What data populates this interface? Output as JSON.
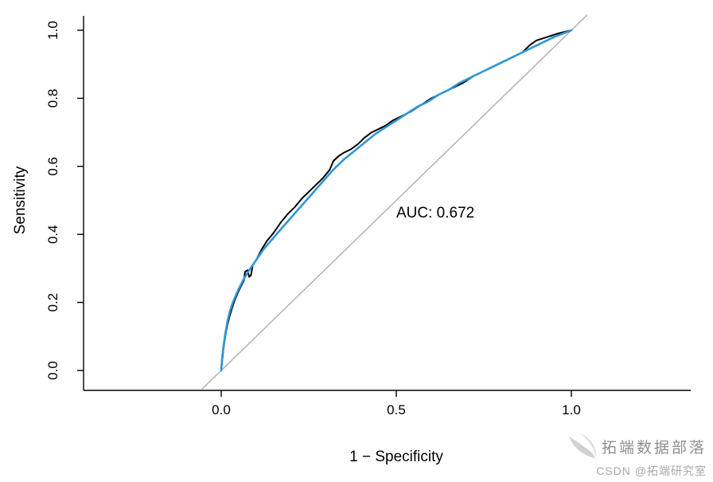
{
  "chart_data": {
    "type": "line",
    "subtype": "roc-curve",
    "title": "",
    "xlabel": "1 − Specificity",
    "ylabel": "Sensitivity",
    "xlim": [
      0,
      1
    ],
    "ylim": [
      0,
      1
    ],
    "grid": false,
    "legend": "none",
    "x_axis": {
      "tick_values": [
        0,
        0.5,
        1
      ],
      "tick_labels": [
        "0.0",
        "0.5",
        "1.0"
      ]
    },
    "y_axis": {
      "tick_values": [
        0,
        0.2,
        0.4,
        0.6,
        0.8,
        1
      ],
      "tick_labels": [
        "0.0",
        "0.2",
        "0.4",
        "0.6",
        "0.8",
        "1.0"
      ]
    },
    "annotation": {
      "text": "AUC: 0.672",
      "x": 0.5,
      "y": 0.45,
      "color": "#000000"
    },
    "reference_line": {
      "name": "chance-diagonal",
      "x": [
        0,
        1
      ],
      "y": [
        0,
        1
      ],
      "color": "#b3b3b3",
      "width": 1.5
    },
    "series": [
      {
        "name": "empirical-roc",
        "color": "#000000",
        "width": 2,
        "points": [
          [
            0.0,
            0.0
          ],
          [
            0.003,
            0.03
          ],
          [
            0.006,
            0.06
          ],
          [
            0.01,
            0.09
          ],
          [
            0.014,
            0.115
          ],
          [
            0.018,
            0.135
          ],
          [
            0.024,
            0.16
          ],
          [
            0.03,
            0.18
          ],
          [
            0.038,
            0.205
          ],
          [
            0.046,
            0.225
          ],
          [
            0.055,
            0.245
          ],
          [
            0.065,
            0.265
          ],
          [
            0.068,
            0.29
          ],
          [
            0.075,
            0.295
          ],
          [
            0.08,
            0.275
          ],
          [
            0.085,
            0.28
          ],
          [
            0.09,
            0.31
          ],
          [
            0.1,
            0.325
          ],
          [
            0.115,
            0.355
          ],
          [
            0.13,
            0.38
          ],
          [
            0.15,
            0.405
          ],
          [
            0.17,
            0.435
          ],
          [
            0.19,
            0.46
          ],
          [
            0.21,
            0.48
          ],
          [
            0.23,
            0.505
          ],
          [
            0.25,
            0.525
          ],
          [
            0.27,
            0.545
          ],
          [
            0.29,
            0.565
          ],
          [
            0.31,
            0.59
          ],
          [
            0.32,
            0.615
          ],
          [
            0.335,
            0.63
          ],
          [
            0.35,
            0.64
          ],
          [
            0.37,
            0.65
          ],
          [
            0.39,
            0.665
          ],
          [
            0.41,
            0.685
          ],
          [
            0.43,
            0.7
          ],
          [
            0.45,
            0.71
          ],
          [
            0.47,
            0.72
          ],
          [
            0.49,
            0.735
          ],
          [
            0.51,
            0.745
          ],
          [
            0.54,
            0.76
          ],
          [
            0.57,
            0.78
          ],
          [
            0.6,
            0.8
          ],
          [
            0.63,
            0.815
          ],
          [
            0.66,
            0.83
          ],
          [
            0.69,
            0.845
          ],
          [
            0.72,
            0.865
          ],
          [
            0.75,
            0.88
          ],
          [
            0.78,
            0.895
          ],
          [
            0.81,
            0.91
          ],
          [
            0.84,
            0.925
          ],
          [
            0.86,
            0.935
          ],
          [
            0.88,
            0.955
          ],
          [
            0.9,
            0.97
          ],
          [
            0.93,
            0.98
          ],
          [
            0.96,
            0.99
          ],
          [
            1.0,
            1.0
          ]
        ]
      },
      {
        "name": "smoothed-roc",
        "color": "#2f96d5",
        "width": 2.6,
        "points": [
          [
            0.0,
            0.0
          ],
          [
            0.003,
            0.04
          ],
          [
            0.007,
            0.075
          ],
          [
            0.012,
            0.11
          ],
          [
            0.018,
            0.145
          ],
          [
            0.025,
            0.175
          ],
          [
            0.035,
            0.205
          ],
          [
            0.05,
            0.24
          ],
          [
            0.065,
            0.27
          ],
          [
            0.08,
            0.295
          ],
          [
            0.1,
            0.325
          ],
          [
            0.12,
            0.355
          ],
          [
            0.145,
            0.385
          ],
          [
            0.17,
            0.415
          ],
          [
            0.2,
            0.45
          ],
          [
            0.23,
            0.485
          ],
          [
            0.26,
            0.52
          ],
          [
            0.29,
            0.555
          ],
          [
            0.32,
            0.59
          ],
          [
            0.35,
            0.62
          ],
          [
            0.38,
            0.645
          ],
          [
            0.41,
            0.67
          ],
          [
            0.44,
            0.695
          ],
          [
            0.47,
            0.715
          ],
          [
            0.5,
            0.735
          ],
          [
            0.53,
            0.755
          ],
          [
            0.56,
            0.775
          ],
          [
            0.59,
            0.79
          ],
          [
            0.62,
            0.81
          ],
          [
            0.65,
            0.825
          ],
          [
            0.68,
            0.845
          ],
          [
            0.71,
            0.86
          ],
          [
            0.74,
            0.875
          ],
          [
            0.77,
            0.89
          ],
          [
            0.8,
            0.905
          ],
          [
            0.83,
            0.92
          ],
          [
            0.86,
            0.935
          ],
          [
            0.89,
            0.95
          ],
          [
            0.92,
            0.965
          ],
          [
            0.95,
            0.98
          ],
          [
            0.98,
            0.992
          ],
          [
            1.0,
            1.0
          ]
        ]
      }
    ]
  },
  "watermark": {
    "brand": "拓端数据部落",
    "credit": "CSDN @拓端研究室",
    "logo_icon": "tuoduan-wings-logo"
  }
}
